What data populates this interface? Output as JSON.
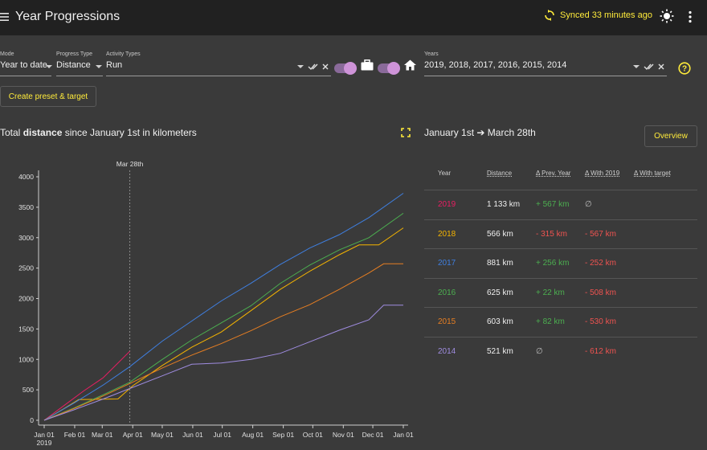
{
  "header": {
    "title": "Year Progressions",
    "sync_text": "Synced 33 minutes ago"
  },
  "filters": {
    "mode": {
      "label": "Mode",
      "value": "Year to date"
    },
    "progress_type": {
      "label": "Progress Type",
      "value": "Distance"
    },
    "activity_types": {
      "label": "Activity Types",
      "value": "Run"
    },
    "years": {
      "label": "Years",
      "value": "2019, 2018, 2017, 2016, 2015, 2014"
    }
  },
  "buttons": {
    "create_preset": "Create preset & target",
    "overview": "Overview"
  },
  "chart": {
    "title_prefix": "Total ",
    "title_bold": "distance",
    "title_suffix": " since January 1st in kilometers",
    "marker_label": "Mar 28th"
  },
  "chart_data": {
    "type": "line",
    "y_ticks": [
      0,
      500,
      1000,
      1500,
      2000,
      2500,
      3000,
      3500,
      4000
    ],
    "ylim": [
      0,
      4000
    ],
    "x_ticks": [
      "Jan 01",
      "Feb 01",
      "Mar 01",
      "Apr 01",
      "May 01",
      "Jun 01",
      "Jul 01",
      "Aug 01",
      "Sep 01",
      "Oct 01",
      "Nov 01",
      "Dec 01",
      "Jan 01"
    ],
    "x_first_tick_year": "2019",
    "marker_day": 87,
    "series": [
      {
        "name": "2019",
        "color": "#e91e63",
        "points": [
          [
            0,
            0
          ],
          [
            20,
            240
          ],
          [
            40,
            480
          ],
          [
            60,
            700
          ],
          [
            87,
            1133
          ]
        ]
      },
      {
        "name": "2018",
        "color": "#f5b400",
        "points": [
          [
            0,
            0
          ],
          [
            20,
            190
          ],
          [
            35,
            340
          ],
          [
            75,
            350
          ],
          [
            90,
            566
          ],
          [
            120,
            900
          ],
          [
            150,
            1200
          ],
          [
            180,
            1450
          ],
          [
            210,
            1800
          ],
          [
            240,
            2150
          ],
          [
            270,
            2450
          ],
          [
            300,
            2720
          ],
          [
            320,
            2880
          ],
          [
            340,
            2880
          ],
          [
            365,
            3160
          ]
        ]
      },
      {
        "name": "2017",
        "color": "#3f7fe0",
        "points": [
          [
            0,
            0
          ],
          [
            30,
            280
          ],
          [
            60,
            580
          ],
          [
            87,
            881
          ],
          [
            120,
            1300
          ],
          [
            150,
            1630
          ],
          [
            180,
            1960
          ],
          [
            210,
            2250
          ],
          [
            240,
            2560
          ],
          [
            270,
            2830
          ],
          [
            300,
            3050
          ],
          [
            330,
            3330
          ],
          [
            365,
            3730
          ]
        ]
      },
      {
        "name": "2016",
        "color": "#4caf50",
        "points": [
          [
            0,
            0
          ],
          [
            30,
            200
          ],
          [
            60,
            420
          ],
          [
            87,
            625
          ],
          [
            120,
            1000
          ],
          [
            150,
            1320
          ],
          [
            180,
            1600
          ],
          [
            210,
            1880
          ],
          [
            240,
            2250
          ],
          [
            270,
            2550
          ],
          [
            300,
            2800
          ],
          [
            330,
            3000
          ],
          [
            365,
            3400
          ]
        ]
      },
      {
        "name": "2015",
        "color": "#e67e22",
        "points": [
          [
            0,
            0
          ],
          [
            30,
            190
          ],
          [
            60,
            400
          ],
          [
            87,
            603
          ],
          [
            120,
            860
          ],
          [
            150,
            1070
          ],
          [
            180,
            1260
          ],
          [
            210,
            1470
          ],
          [
            240,
            1700
          ],
          [
            270,
            1900
          ],
          [
            300,
            2150
          ],
          [
            330,
            2420
          ],
          [
            345,
            2570
          ],
          [
            365,
            2570
          ]
        ]
      },
      {
        "name": "2014",
        "color": "#9f8ce0",
        "points": [
          [
            0,
            0
          ],
          [
            30,
            170
          ],
          [
            60,
            350
          ],
          [
            87,
            521
          ],
          [
            120,
            730
          ],
          [
            150,
            920
          ],
          [
            180,
            940
          ],
          [
            210,
            1000
          ],
          [
            240,
            1100
          ],
          [
            270,
            1290
          ],
          [
            300,
            1480
          ],
          [
            330,
            1650
          ],
          [
            345,
            1890
          ],
          [
            365,
            1890
          ]
        ]
      }
    ]
  },
  "range_title": {
    "from": "January 1st",
    "arrow": "➔",
    "to": "March 28th"
  },
  "table": {
    "headers": [
      "Year",
      "Distance",
      "Δ Prev. Year",
      "Δ With 2019",
      "Δ With target"
    ],
    "rows": [
      {
        "year": "2019",
        "color": "#e91e63",
        "distance": "1 133 km",
        "prev": "+ 567 km",
        "prev_color": "#4caf50",
        "with2019": "∅",
        "with2019_color": "#bdbdbd"
      },
      {
        "year": "2018",
        "color": "#f5b400",
        "distance": "566 km",
        "prev": "- 315 km",
        "prev_color": "#ef5350",
        "with2019": "- 567 km",
        "with2019_color": "#ef5350"
      },
      {
        "year": "2017",
        "color": "#3f7fe0",
        "distance": "881 km",
        "prev": "+ 256 km",
        "prev_color": "#4caf50",
        "with2019": "- 252 km",
        "with2019_color": "#ef5350"
      },
      {
        "year": "2016",
        "color": "#4caf50",
        "distance": "625 km",
        "prev": "+ 22 km",
        "prev_color": "#4caf50",
        "with2019": "- 508 km",
        "with2019_color": "#ef5350"
      },
      {
        "year": "2015",
        "color": "#e67e22",
        "distance": "603 km",
        "prev": "+ 82 km",
        "prev_color": "#4caf50",
        "with2019": "- 530 km",
        "with2019_color": "#ef5350"
      },
      {
        "year": "2014",
        "color": "#9f8ce0",
        "distance": "521 km",
        "prev": "∅",
        "prev_color": "#bdbdbd",
        "with2019": "- 612 km",
        "with2019_color": "#ef5350"
      }
    ]
  },
  "icons": [
    "menu-icon",
    "sync-icon",
    "brightness-icon",
    "more-vert-icon",
    "briefcase-icon",
    "home-icon",
    "help-icon",
    "fullscreen-icon"
  ]
}
